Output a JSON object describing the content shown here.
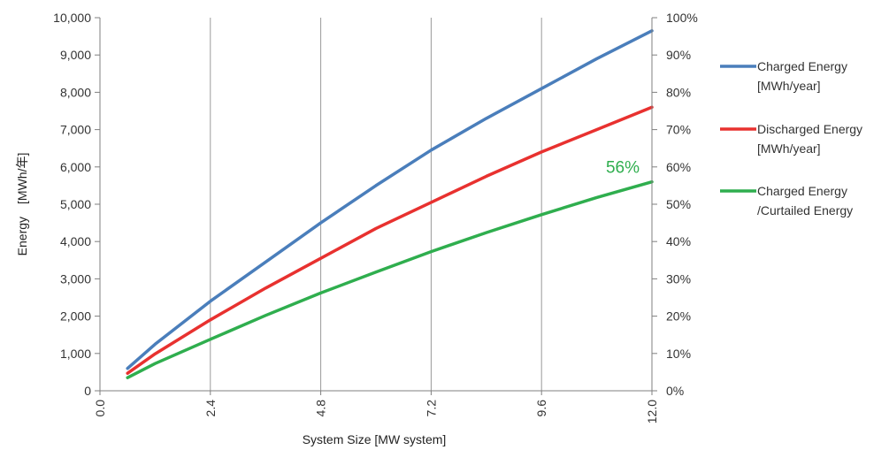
{
  "chart_data": {
    "type": "line",
    "xlabel": "System Size [MW system]",
    "ylabel": "Energy　[MWh/年]",
    "x_ticks": [
      "0.0",
      "2.4",
      "4.8",
      "7.2",
      "9.6",
      "12.0"
    ],
    "xlim": [
      0,
      12
    ],
    "ylim": [
      0,
      10000
    ],
    "y2lim": [
      0,
      100
    ],
    "y_ticks": [
      "0",
      "1,000",
      "2,000",
      "3,000",
      "4,000",
      "5,000",
      "6,000",
      "7,000",
      "8,000",
      "9,000",
      "10,000"
    ],
    "y2_ticks": [
      "0%",
      "10%",
      "20%",
      "30%",
      "40%",
      "50%",
      "60%",
      "70%",
      "80%",
      "90%",
      "100%"
    ],
    "grid": "vertical",
    "legend_position": "right",
    "x": [
      0.6,
      1.2,
      2.4,
      3.6,
      4.8,
      6.0,
      7.2,
      8.4,
      9.6,
      10.8,
      12.0
    ],
    "series": [
      {
        "name": "Charged Energy [MWh/year]",
        "legend_lines": [
          "Charged Energy",
          "[MWh/year]"
        ],
        "axis": "left",
        "color": "#4a7ebb",
        "values": [
          600,
          1250,
          2400,
          3450,
          4500,
          5500,
          6450,
          7300,
          8100,
          8900,
          9650
        ]
      },
      {
        "name": "Discharged Energy [MWh/year]",
        "legend_lines": [
          "Discharged Energy",
          "[MWh/year]"
        ],
        "axis": "left",
        "color": "#e8312f",
        "values": [
          470,
          990,
          1900,
          2750,
          3550,
          4350,
          5050,
          5750,
          6400,
          7000,
          7600
        ]
      },
      {
        "name": "Charged Energy /Curtailed Energy",
        "legend_lines": [
          "Charged Energy",
          "/Curtailed Energy"
        ],
        "axis": "right",
        "unit": "%",
        "color": "#2fae4e",
        "values": [
          3.5,
          7.3,
          13.8,
          20.2,
          26.2,
          31.8,
          37.3,
          42.4,
          47.2,
          51.8,
          56
        ]
      }
    ],
    "annotations": [
      {
        "text": "56%",
        "series": 2,
        "x": 12.0,
        "color": "#2fae4e"
      }
    ]
  }
}
